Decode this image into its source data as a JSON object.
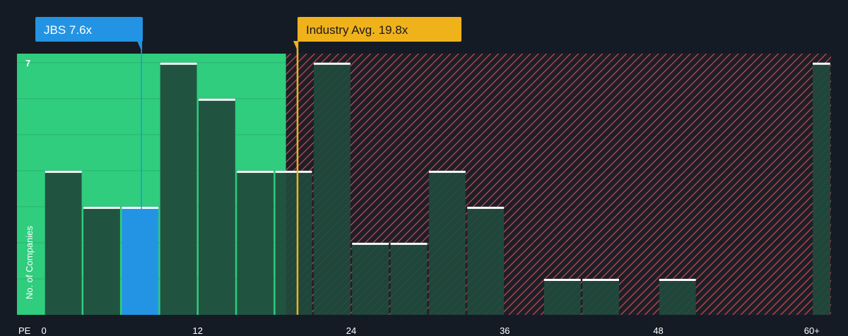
{
  "chart_data": {
    "type": "bar",
    "x_axis": {
      "label": "PE",
      "ticks": [
        {
          "value": 0,
          "label": "0"
        },
        {
          "value": 12,
          "label": "12"
        },
        {
          "value": 24,
          "label": "24"
        },
        {
          "value": 36,
          "label": "36"
        },
        {
          "value": 48,
          "label": "48"
        },
        {
          "value": 60,
          "label": "60+"
        }
      ],
      "xlim": [
        0,
        61.5
      ]
    },
    "y_axis": {
      "label": "No. of Companies",
      "ticks": [
        {
          "value": 7,
          "label": "7"
        }
      ],
      "ylim": [
        0,
        7.25
      ],
      "grid": true
    },
    "bins": [
      {
        "start": 0,
        "end": 3,
        "count": 4,
        "highlight": false
      },
      {
        "start": 3,
        "end": 6,
        "count": 3,
        "highlight": false
      },
      {
        "start": 6,
        "end": 9,
        "count": 3,
        "highlight": true
      },
      {
        "start": 9,
        "end": 12,
        "count": 7,
        "highlight": false
      },
      {
        "start": 12,
        "end": 15,
        "count": 6,
        "highlight": false
      },
      {
        "start": 15,
        "end": 18,
        "count": 4,
        "highlight": false
      },
      {
        "start": 18,
        "end": 21,
        "count": 4,
        "highlight": false
      },
      {
        "start": 21,
        "end": 24,
        "count": 7,
        "highlight": false
      },
      {
        "start": 24,
        "end": 27,
        "count": 2,
        "highlight": false
      },
      {
        "start": 27,
        "end": 30,
        "count": 2,
        "highlight": false
      },
      {
        "start": 30,
        "end": 33,
        "count": 4,
        "highlight": false
      },
      {
        "start": 33,
        "end": 36,
        "count": 3,
        "highlight": false
      },
      {
        "start": 36,
        "end": 39,
        "count": 0,
        "highlight": false
      },
      {
        "start": 39,
        "end": 42,
        "count": 1,
        "highlight": false
      },
      {
        "start": 42,
        "end": 45,
        "count": 1,
        "highlight": false
      },
      {
        "start": 45,
        "end": 48,
        "count": 0,
        "highlight": false
      },
      {
        "start": 48,
        "end": 51,
        "count": 1,
        "highlight": false
      },
      {
        "start": 51,
        "end": 54,
        "count": 0,
        "highlight": false
      },
      {
        "start": 54,
        "end": 57,
        "count": 0,
        "highlight": false
      },
      {
        "start": 57,
        "end": 60,
        "count": 0,
        "highlight": false
      },
      {
        "start": 60,
        "end": 61.5,
        "count": 7,
        "highlight": false
      }
    ],
    "markers": {
      "company": {
        "label": "JBS 7.6x",
        "value": 7.6,
        "color": "#2394e3"
      },
      "industry": {
        "label": "Industry Avg. 19.8x",
        "value": 19.8,
        "color": "#f0b21b"
      }
    },
    "regions": {
      "undervalued": {
        "from": -2.2,
        "to": 18.9,
        "color": "#2fcd7d"
      },
      "overvalued": {
        "from": 18.9,
        "to": 61.5,
        "color": "#e2434b"
      }
    },
    "colors": {
      "background": "#151b24",
      "bar_fill": "#1f4a3c",
      "highlight_bar": "#2394e3",
      "bar_top": "#ffffff"
    }
  }
}
